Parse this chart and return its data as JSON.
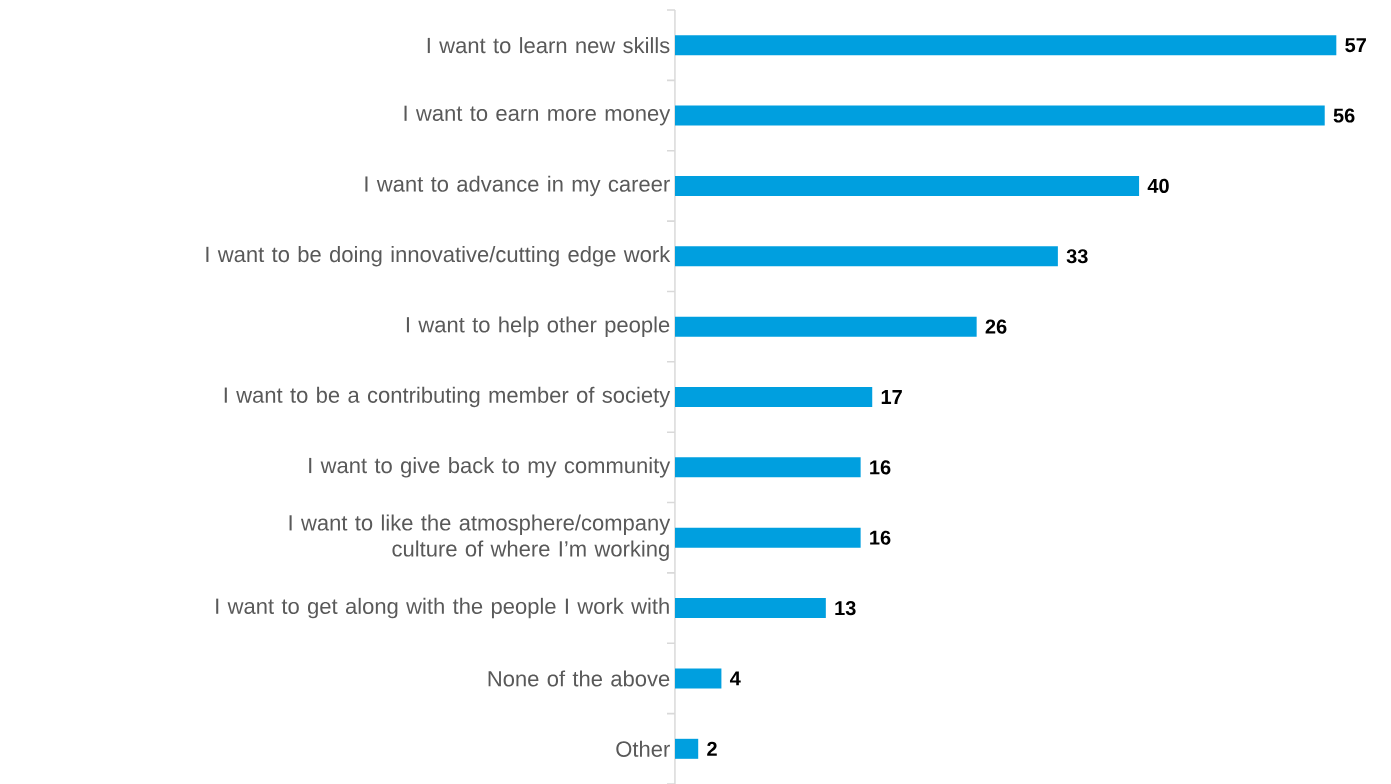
{
  "chart_data": {
    "type": "bar",
    "orientation": "horizontal",
    "data_labels": true,
    "color": "#009fdf",
    "categories": [
      "I want to learn new skills",
      "I want to earn more money",
      "I want to advance in my career",
      "I want to be doing innovative/cutting edge work",
      "I want to help other people",
      "I want to be a contributing member of society",
      "I want to give back to my community",
      "I want to like the atmosphere/company culture of where I’m working",
      "I want to get along with the people I work with",
      "None of the above",
      "Other"
    ],
    "values": [
      57,
      56,
      40,
      33,
      26,
      17,
      16,
      16,
      13,
      4,
      2
    ]
  }
}
